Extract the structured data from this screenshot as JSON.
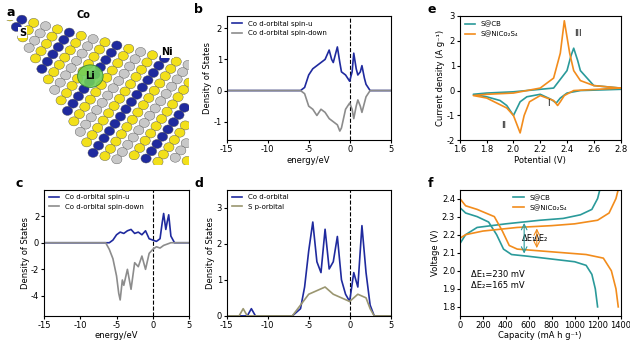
{
  "structure": {
    "title": "a",
    "labels": [
      "S",
      "Co",
      "Ni",
      "Li"
    ]
  },
  "chart_data": [
    {
      "type": "line",
      "title": "b",
      "x_label": "energy/eV",
      "y_label": "Density of States",
      "xlim": [
        -15,
        5
      ],
      "xticks": [
        -15,
        -10,
        -5,
        0,
        5
      ],
      "ylim": [
        -1.6,
        2.4
      ],
      "yticks": [
        -1,
        0,
        1,
        2
      ],
      "vline": 0,
      "legend": "upper left",
      "series": [
        {
          "name": "Co d-orbital spin-u",
          "color": "#1f2a9e",
          "x": [
            -15,
            -6,
            -5.5,
            -5,
            -4.5,
            -4,
            -3.5,
            -3,
            -2.5,
            -2.2,
            -2,
            -1.7,
            -1.5,
            -1.2,
            -1,
            -0.5,
            0,
            0.3,
            0.5,
            0.8,
            1,
            1.3,
            1.5,
            1.8,
            2,
            2.5,
            5
          ],
          "values": [
            0,
            0,
            0.1,
            0.5,
            0.7,
            0.8,
            0.9,
            1.0,
            1.3,
            1.0,
            0.9,
            1.2,
            1.4,
            0.9,
            0.6,
            0.5,
            0.3,
            0.6,
            1.2,
            0.7,
            0.5,
            0.6,
            0.8,
            0.4,
            0.2,
            0,
            0
          ]
        },
        {
          "name": "Co d-orbital spin-down",
          "color": "#8c8c8c",
          "x": [
            -15,
            -6,
            -5.5,
            -5,
            -4.5,
            -4,
            -3.5,
            -3,
            -2.5,
            -2,
            -1.5,
            -1.2,
            -1,
            -0.5,
            0,
            0.3,
            0.5,
            0.8,
            1,
            1.3,
            1.5,
            1.8,
            2,
            2.5,
            5
          ],
          "values": [
            0,
            0,
            -0.1,
            -0.5,
            -0.6,
            -0.8,
            -0.6,
            -0.7,
            -0.9,
            -1.0,
            -1.1,
            -1.3,
            -1.2,
            -0.6,
            -0.4,
            -0.6,
            -0.9,
            -0.5,
            -0.3,
            -0.5,
            -0.7,
            -0.4,
            -0.2,
            0,
            0
          ]
        }
      ]
    },
    {
      "type": "line",
      "title": "c",
      "x_label": "energy/eV",
      "y_label": "Density of States",
      "xlim": [
        -15,
        5
      ],
      "xticks": [
        -15,
        -10,
        -5,
        0,
        5
      ],
      "ylim": [
        -5.5,
        4
      ],
      "yticks": [
        -4,
        -2,
        0,
        2
      ],
      "vline": 0,
      "legend": "upper left",
      "series": [
        {
          "name": "Co d-orbital spin-u",
          "color": "#1f2a9e",
          "x": [
            -15,
            -6,
            -5.5,
            -5,
            -4.5,
            -4,
            -3.5,
            -3,
            -2.5,
            -2,
            -1.5,
            -1,
            -0.5,
            0,
            0.5,
            1,
            1.3,
            1.5,
            1.8,
            2,
            2.2,
            2.5,
            3,
            5
          ],
          "values": [
            0,
            0,
            0.2,
            0.6,
            0.8,
            0.7,
            0.9,
            1.0,
            0.7,
            0.8,
            0.6,
            0.9,
            0.3,
            0.2,
            0.1,
            0.3,
            1.5,
            2.2,
            1.0,
            1.6,
            2.1,
            0.5,
            0,
            0
          ]
        },
        {
          "name": "Co d-orbital spin-down",
          "color": "#8c8c8c",
          "x": [
            -15,
            -6.5,
            -6,
            -5.5,
            -5,
            -4.7,
            -4.5,
            -4.2,
            -4,
            -3.5,
            -3,
            -2.5,
            -2,
            -1.5,
            -1,
            -0.5,
            0,
            0.5,
            1,
            1.5,
            2,
            2.5,
            5
          ],
          "values": [
            0,
            0,
            -0.5,
            -1.2,
            -2.5,
            -3.8,
            -4.3,
            -2.8,
            -3.2,
            -2.0,
            -3.5,
            -1.5,
            -1.8,
            -1.0,
            -2.0,
            -0.8,
            -0.5,
            -0.3,
            -0.4,
            -0.2,
            -0.1,
            0,
            0
          ]
        }
      ]
    },
    {
      "type": "line",
      "title": "d",
      "y_label": "Density of States",
      "xlim": [
        -15,
        5
      ],
      "xticks": [
        -15,
        -10,
        -5,
        0,
        5
      ],
      "ylim": [
        0,
        3.5
      ],
      "yticks": [
        0,
        1,
        2,
        3
      ],
      "vline": 0,
      "legend": "upper left",
      "series": [
        {
          "name": "Co d-orbital",
          "color": "#1f2a9e",
          "x": [
            -15,
            -12.5,
            -12,
            -11.5,
            -7,
            -6,
            -5.5,
            -5,
            -4.5,
            -4,
            -3.5,
            -3,
            -2.5,
            -2,
            -1.5,
            -1,
            -0.5,
            0,
            0.5,
            1,
            1.5,
            2,
            2.5,
            3,
            5
          ],
          "values": [
            0,
            0,
            0.2,
            0,
            0,
            0.2,
            0.8,
            1.8,
            2.6,
            1.5,
            1.2,
            2.4,
            1.3,
            1.5,
            2.2,
            1.0,
            0.6,
            0.4,
            1.2,
            0.8,
            2.5,
            1.2,
            0.3,
            0,
            0
          ]
        },
        {
          "name": "S p-orbital",
          "color": "#9a9670",
          "x": [
            -15,
            -13.5,
            -13,
            -12.5,
            -7,
            -6,
            -5,
            -4,
            -3,
            -2,
            -1,
            0,
            1,
            2,
            2.5,
            3,
            5
          ],
          "values": [
            0,
            0,
            0.2,
            0,
            0,
            0.3,
            0.6,
            0.7,
            0.8,
            0.6,
            0.5,
            0.4,
            0.6,
            0.5,
            0.2,
            0,
            0
          ]
        }
      ]
    },
    {
      "type": "line",
      "title": "e",
      "x_label": "Potential (V)",
      "y_label": "Current density (A g⁻¹)",
      "xlim": [
        1.6,
        2.8
      ],
      "xticks": [
        1.6,
        1.8,
        2.0,
        2.2,
        2.4,
        2.6,
        2.8
      ],
      "ylim": [
        -2,
        3
      ],
      "yticks": [
        -2,
        -1,
        0,
        1,
        2,
        3
      ],
      "legend": "upper left",
      "annotations": [
        "I",
        "II",
        "III"
      ],
      "series": [
        {
          "name": "S@CB",
          "color": "#2a9a9a",
          "x": [
            2.8,
            2.5,
            2.4,
            2.35,
            2.32,
            2.28,
            2.2,
            2.1,
            2.05,
            2.0,
            1.95,
            1.9,
            1.8,
            1.7,
            1.8,
            2.0,
            2.1,
            2.3,
            2.4,
            2.43,
            2.45,
            2.48,
            2.5,
            2.6,
            2.8
          ],
          "values": [
            0.05,
            0,
            -0.1,
            -0.3,
            -0.5,
            -0.35,
            -0.15,
            -0.25,
            -0.45,
            -1.0,
            -0.6,
            -0.4,
            -0.25,
            -0.15,
            -0.1,
            -0.05,
            0,
            0.1,
            0.8,
            1.4,
            1.7,
            1.2,
            0.8,
            0.2,
            0.1
          ]
        },
        {
          "name": "S@NiCo₂S₄",
          "color": "#f28c1c",
          "x": [
            2.8,
            2.45,
            2.38,
            2.35,
            2.33,
            2.3,
            2.2,
            2.12,
            2.08,
            2.05,
            2.0,
            1.95,
            1.8,
            1.7,
            1.8,
            2.0,
            2.2,
            2.3,
            2.35,
            2.38,
            2.42,
            2.45,
            2.5,
            2.6,
            2.8
          ],
          "values": [
            0.1,
            0,
            -0.2,
            -0.45,
            -0.6,
            -0.4,
            -0.2,
            -0.45,
            -1.0,
            -1.7,
            -1.0,
            -0.7,
            -0.3,
            -0.2,
            -0.15,
            -0.1,
            0.1,
            0.5,
            1.5,
            2.8,
            1.5,
            0.8,
            0.4,
            0.2,
            0.1
          ]
        }
      ]
    },
    {
      "type": "line",
      "title": "f",
      "x_label": "Capacity (mA h g⁻¹)",
      "y_label": "Voltage (V)",
      "xlim": [
        0,
        1400
      ],
      "xticks": [
        0,
        200,
        400,
        600,
        800,
        1000,
        1200,
        1400
      ],
      "ylim": [
        1.75,
        2.45
      ],
      "yticks": [
        1.8,
        1.9,
        2.0,
        2.1,
        2.2,
        2.3,
        2.4
      ],
      "legend": "upper center",
      "annotations": [
        "ΔE₁",
        "ΔE₂",
        "ΔE₁=230 mV",
        "ΔE₂=165 mV"
      ],
      "series": [
        {
          "name": "S@CB",
          "color": "#2a9a9a",
          "discharge": {
            "x": [
              0,
              50,
              150,
              250,
              320,
              380,
              450,
              600,
              800,
              1000,
              1100,
              1150,
              1180,
              1200
            ],
            "values": [
              2.35,
              2.32,
              2.3,
              2.27,
              2.2,
              2.12,
              2.09,
              2.08,
              2.065,
              2.05,
              2.03,
              1.98,
              1.9,
              1.8
            ]
          },
          "charge": {
            "x": [
              0,
              50,
              150,
              400,
              700,
              900,
              1050,
              1150,
              1200,
              1220
            ],
            "values": [
              2.15,
              2.2,
              2.24,
              2.26,
              2.28,
              2.29,
              2.31,
              2.34,
              2.4,
              2.45
            ]
          }
        },
        {
          "name": "S@NiCo₂S₄",
          "color": "#f28c1c",
          "discharge": {
            "x": [
              0,
              50,
              150,
              300,
              370,
              430,
              500,
              700,
              900,
              1100,
              1250,
              1320,
              1360,
              1380
            ],
            "values": [
              2.4,
              2.36,
              2.34,
              2.3,
              2.22,
              2.14,
              2.12,
              2.11,
              2.1,
              2.09,
              2.07,
              2.0,
              1.9,
              1.8
            ]
          },
          "charge": {
            "x": [
              0,
              50,
              200,
              500,
              800,
              1000,
              1200,
              1300,
              1360,
              1380
            ],
            "values": [
              2.18,
              2.2,
              2.22,
              2.24,
              2.25,
              2.26,
              2.28,
              2.32,
              2.4,
              2.45
            ]
          }
        }
      ]
    }
  ]
}
